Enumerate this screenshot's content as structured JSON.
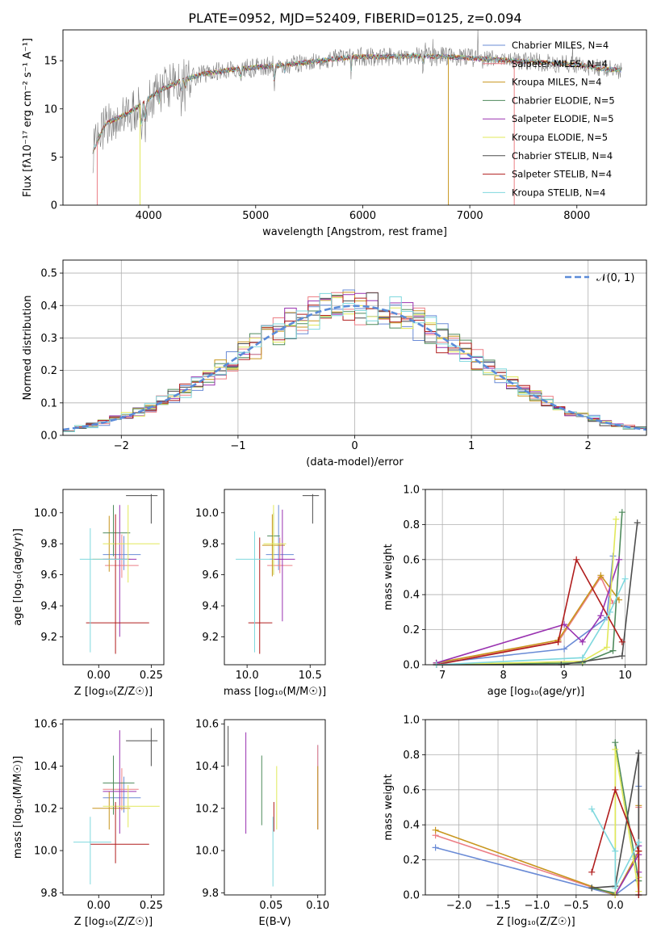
{
  "chart_data": [
    {
      "id": "spectrum",
      "type": "line",
      "title": "PLATE=0952, MJD=52409, FIBERID=0125, z=0.094",
      "xlabel": "wavelength [Angstrom, rest frame]",
      "ylabel": "Flux [fλ10⁻¹⁷ erg cm⁻² s⁻¹ A⁻¹]",
      "xlim": [
        3200,
        8650
      ],
      "ylim": [
        0,
        18.2
      ],
      "xticks": [
        4000,
        5000,
        6000,
        7000,
        8000
      ],
      "yticks": [
        0,
        5,
        10,
        15
      ],
      "grid": false,
      "legend_position": "right",
      "continuum": {
        "x": [
          3480,
          3600,
          3800,
          3950,
          4100,
          4300,
          4500,
          4800,
          5000,
          5300,
          5600,
          5900,
          6200,
          6500,
          6800,
          7100,
          7400,
          7700,
          8000,
          8200,
          8420
        ],
        "y": [
          5.6,
          8.5,
          9.5,
          10.6,
          11.9,
          12.9,
          13.6,
          14.1,
          14.3,
          14.6,
          15.0,
          15.4,
          15.4,
          15.5,
          15.4,
          15.2,
          15.0,
          14.8,
          14.6,
          14.2,
          14.0
        ]
      },
      "series": [
        {
          "name": "Chabrier MILES, N_SSP=4",
          "color": "#6a8bd6"
        },
        {
          "name": "Salpeter MILES, N_SSP=4",
          "color": "#ec7f86"
        },
        {
          "name": "Kroupa MILES, N_SSP=4",
          "color": "#c8961e"
        },
        {
          "name": "Chabrier ELODIE, N_SSP=5",
          "color": "#4e8a5c"
        },
        {
          "name": "Salpeter ELODIE, N_SSP=5",
          "color": "#9932b0"
        },
        {
          "name": "Kroupa ELODIE, N_SSP=5",
          "color": "#e1e85a"
        },
        {
          "name": "Chabrier STELIB, N_SSP=4",
          "color": "#4d4d4d"
        },
        {
          "name": "Salpeter STELIB, N_SSP=4",
          "color": "#b01d1d"
        },
        {
          "name": "Kroupa STELIB, N_SSP=4",
          "color": "#7fd8de"
        }
      ]
    },
    {
      "id": "residuals",
      "type": "histogram",
      "xlabel": "(data-model)/error",
      "ylabel": "Normed distribution",
      "xlim": [
        -2.5,
        2.5
      ],
      "ylim": [
        0,
        0.54
      ],
      "xticks": [
        -2,
        -1,
        0,
        1,
        2
      ],
      "yticks": [
        0.0,
        0.1,
        0.2,
        0.3,
        0.4,
        0.5
      ],
      "grid": true,
      "legend_position": "top-right",
      "reference_label": "𝒩(0, 1)",
      "reference_color": "#5b8bd8",
      "bin_width": 0.1
    },
    {
      "id": "age-vs-Z",
      "type": "errorbar",
      "xlabel": "Z [log₁₀(Z/Z☉)]",
      "ylabel": "age  [log₁₀(age/yr)]",
      "xlim": [
        -0.17,
        0.31
      ],
      "ylim": [
        9.02,
        10.15
      ],
      "xticks": [
        0.0,
        0.25
      ],
      "yticks": [
        9.2,
        9.4,
        9.6,
        9.8,
        10.0
      ],
      "points": [
        {
          "color": "#6a8bd6",
          "x": 0.12,
          "y": 9.73,
          "xerr": [
            0.1,
            0.08
          ],
          "yerr": [
            0.1,
            0.12
          ]
        },
        {
          "color": "#ec7f86",
          "x": 0.11,
          "y": 9.66,
          "xerr": [
            0.08,
            0.08
          ],
          "yerr": [
            0.08,
            0.2
          ]
        },
        {
          "color": "#c8961e",
          "x": 0.05,
          "y": 9.7,
          "xerr": [
            0.08,
            0.1
          ],
          "yerr": [
            0.08,
            0.28
          ]
        },
        {
          "color": "#4e8a5c",
          "x": 0.07,
          "y": 9.87,
          "xerr": [
            0.05,
            0.08
          ],
          "yerr": [
            0.15,
            0.18
          ]
        },
        {
          "color": "#9932b0",
          "x": 0.1,
          "y": 9.7,
          "xerr": [
            0.08,
            0.08
          ],
          "yerr": [
            0.5,
            0.35
          ]
        },
        {
          "color": "#e1e85a",
          "x": 0.14,
          "y": 9.8,
          "xerr": [
            0.12,
            0.15
          ],
          "yerr": [
            0.25,
            0.25
          ]
        },
        {
          "color": "#4d4d4d",
          "x": 0.25,
          "y": 10.11,
          "xerr": [
            0.12,
            0.03
          ],
          "yerr": [
            0.18,
            0.01
          ]
        },
        {
          "color": "#b01d1d",
          "x": 0.08,
          "y": 9.29,
          "xerr": [
            0.14,
            0.16
          ],
          "yerr": [
            0.2,
            0.7
          ]
        },
        {
          "color": "#7fd8de",
          "x": -0.04,
          "y": 9.7,
          "xerr": [
            0.05,
            0.18
          ],
          "yerr": [
            0.6,
            0.2
          ]
        }
      ]
    },
    {
      "id": "age-vs-mass",
      "type": "errorbar",
      "xlabel": "mass [log₁₀(M/M☉)]",
      "ylabel": "",
      "xlim": [
        9.82,
        10.62
      ],
      "ylim": [
        9.02,
        10.15
      ],
      "xticks": [
        10.0,
        10.5
      ],
      "yticks": [
        9.2,
        9.4,
        9.6,
        9.8,
        10.0
      ],
      "points": [
        {
          "color": "#6a8bd6",
          "x": 10.25,
          "y": 9.73,
          "xerr": [
            0.1,
            0.12
          ],
          "yerr": [
            0.1,
            0.32
          ]
        },
        {
          "color": "#ec7f86",
          "x": 10.26,
          "y": 9.66,
          "xerr": [
            0.1,
            0.1
          ],
          "yerr": [
            0.05,
            0.18
          ]
        },
        {
          "color": "#c8961e",
          "x": 10.2,
          "y": 9.79,
          "xerr": [
            0.08,
            0.1
          ],
          "yerr": [
            0.2,
            0.2
          ]
        },
        {
          "color": "#4e8a5c",
          "x": 10.21,
          "y": 9.85,
          "xerr": [
            0.05,
            0.05
          ],
          "yerr": [
            0.25,
            0.15
          ]
        },
        {
          "color": "#9932b0",
          "x": 10.28,
          "y": 9.7,
          "xerr": [
            0.1,
            0.1
          ],
          "yerr": [
            0.4,
            0.32
          ]
        },
        {
          "color": "#e1e85a",
          "x": 10.21,
          "y": 9.8,
          "xerr": [
            0.08,
            0.1
          ],
          "yerr": [
            0.2,
            0.25
          ]
        },
        {
          "color": "#4d4d4d",
          "x": 10.52,
          "y": 10.11,
          "xerr": [
            0.08,
            0.05
          ],
          "yerr": [
            0.18,
            0.01
          ]
        },
        {
          "color": "#b01d1d",
          "x": 10.1,
          "y": 9.29,
          "xerr": [
            0.09,
            0.1
          ],
          "yerr": [
            0.2,
            0.55
          ]
        },
        {
          "color": "#7fd8de",
          "x": 10.06,
          "y": 9.7,
          "xerr": [
            0.15,
            0.14
          ],
          "yerr": [
            0.6,
            0.18
          ]
        }
      ]
    },
    {
      "id": "weight-vs-age",
      "type": "line",
      "xlabel": "age  [log₁₀(age/yr)]",
      "ylabel": "mass weight",
      "xlim": [
        6.72,
        10.35
      ],
      "ylim": [
        0,
        1.0
      ],
      "xticks": [
        7,
        8,
        9,
        10
      ],
      "yticks": [
        0.0,
        0.2,
        0.4,
        0.6,
        0.8,
        1.0
      ],
      "grid": true,
      "series": [
        {
          "color": "#6a8bd6",
          "x": [
            6.9,
            9.0,
            9.7,
            9.8
          ],
          "y": [
            0.01,
            0.09,
            0.27,
            0.62
          ]
        },
        {
          "color": "#ec7f86",
          "x": [
            6.9,
            8.9,
            9.6,
            9.8
          ],
          "y": [
            0.01,
            0.13,
            0.5,
            0.35
          ]
        },
        {
          "color": "#c8961e",
          "x": [
            6.9,
            8.9,
            9.6,
            9.9
          ],
          "y": [
            0.01,
            0.14,
            0.51,
            0.37
          ]
        },
        {
          "color": "#4e8a5c",
          "x": [
            6.9,
            9.3,
            9.8,
            9.95
          ],
          "y": [
            0.0,
            0.01,
            0.08,
            0.87
          ]
        },
        {
          "color": "#9932b0",
          "x": [
            6.9,
            9.0,
            9.3,
            9.6,
            9.9
          ],
          "y": [
            0.01,
            0.23,
            0.13,
            0.28,
            0.6
          ]
        },
        {
          "color": "#e1e85a",
          "x": [
            6.9,
            9.3,
            9.7,
            9.85
          ],
          "y": [
            0.0,
            0.02,
            0.1,
            0.83
          ]
        },
        {
          "color": "#4d4d4d",
          "x": [
            6.9,
            8.95,
            9.95,
            10.2
          ],
          "y": [
            0.0,
            0.0,
            0.05,
            0.81
          ]
        },
        {
          "color": "#b01d1d",
          "x": [
            6.9,
            8.9,
            9.2,
            9.95
          ],
          "y": [
            0.0,
            0.13,
            0.6,
            0.13
          ]
        },
        {
          "color": "#7fd8de",
          "x": [
            6.9,
            9.3,
            9.75,
            10.0
          ],
          "y": [
            0.0,
            0.04,
            0.3,
            0.49
          ]
        }
      ]
    },
    {
      "id": "mass-vs-Z",
      "type": "errorbar",
      "xlabel": "Z [log₁₀(Z/Z☉)]",
      "ylabel": "mass [log₁₀(M/M☉)]",
      "xlim": [
        -0.17,
        0.31
      ],
      "ylim": [
        9.79,
        10.62
      ],
      "xticks": [
        0.0,
        0.25
      ],
      "yticks": [
        9.8,
        10.0,
        10.2,
        10.4,
        10.6
      ],
      "points": [
        {
          "color": "#6a8bd6",
          "x": 0.12,
          "y": 10.25,
          "xerr": [
            0.1,
            0.08
          ],
          "yerr": [
            0.07,
            0.1
          ]
        },
        {
          "color": "#ec7f86",
          "x": 0.11,
          "y": 10.29,
          "xerr": [
            0.09,
            0.08
          ],
          "yerr": [
            0.1,
            0.1
          ]
        },
        {
          "color": "#c8961e",
          "x": 0.05,
          "y": 10.2,
          "xerr": [
            0.08,
            0.1
          ],
          "yerr": [
            0.1,
            0.08
          ]
        },
        {
          "color": "#4e8a5c",
          "x": 0.07,
          "y": 10.32,
          "xerr": [
            0.05,
            0.1
          ],
          "yerr": [
            0.15,
            0.13
          ]
        },
        {
          "color": "#9932b0",
          "x": 0.1,
          "y": 10.28,
          "xerr": [
            0.08,
            0.08
          ],
          "yerr": [
            0.2,
            0.29
          ]
        },
        {
          "color": "#e1e85a",
          "x": 0.14,
          "y": 10.21,
          "xerr": [
            0.12,
            0.15
          ],
          "yerr": [
            0.1,
            0.1
          ]
        },
        {
          "color": "#4d4d4d",
          "x": 0.25,
          "y": 10.52,
          "xerr": [
            0.12,
            0.03
          ],
          "yerr": [
            0.12,
            0.06
          ]
        },
        {
          "color": "#b01d1d",
          "x": 0.08,
          "y": 10.03,
          "xerr": [
            0.12,
            0.16
          ],
          "yerr": [
            0.09,
            0.2
          ]
        },
        {
          "color": "#7fd8de",
          "x": -0.04,
          "y": 10.04,
          "xerr": [
            0.08,
            0.1
          ],
          "yerr": [
            0.2,
            0.12
          ]
        }
      ]
    },
    {
      "id": "mass-vs-ebv",
      "type": "errorbar",
      "xlabel": "E(B-V)",
      "ylabel": "",
      "xlim": [
        0.0,
        0.108
      ],
      "ylim": [
        9.79,
        10.62
      ],
      "xticks": [
        0.05,
        0.1
      ],
      "yticks": [
        9.8,
        10.0,
        10.2,
        10.4,
        10.6
      ],
      "points": [
        {
          "color": "#6a8bd6",
          "x": 0.1,
          "y": 10.3,
          "xerr": [
            0,
            0
          ],
          "yerr": [
            0.2,
            0.2
          ]
        },
        {
          "color": "#ec7f86",
          "x": 0.1,
          "y": 10.3,
          "xerr": [
            0,
            0
          ],
          "yerr": [
            0.2,
            0.2
          ]
        },
        {
          "color": "#c8961e",
          "x": 0.1,
          "y": 10.25,
          "xerr": [
            0,
            0
          ],
          "yerr": [
            0.15,
            0.15
          ]
        },
        {
          "color": "#4e8a5c",
          "x": 0.04,
          "y": 10.28,
          "xerr": [
            0,
            0
          ],
          "yerr": [
            0.16,
            0.17
          ]
        },
        {
          "color": "#9932b0",
          "x": 0.023,
          "y": 10.29,
          "xerr": [
            0,
            0
          ],
          "yerr": [
            0.21,
            0.27
          ]
        },
        {
          "color": "#e1e85a",
          "x": 0.056,
          "y": 10.25,
          "xerr": [
            0,
            0
          ],
          "yerr": [
            0.15,
            0.15
          ]
        },
        {
          "color": "#4d4d4d",
          "x": 0.004,
          "y": 10.5,
          "xerr": [
            0,
            0
          ],
          "yerr": [
            0.1,
            0.09
          ]
        },
        {
          "color": "#b01d1d",
          "x": 0.053,
          "y": 10.15,
          "xerr": [
            0,
            0
          ],
          "yerr": [
            0.06,
            0.08
          ]
        },
        {
          "color": "#7fd8de",
          "x": 0.052,
          "y": 10.0,
          "xerr": [
            0,
            0
          ],
          "yerr": [
            0.17,
            0.16
          ]
        }
      ]
    },
    {
      "id": "weight-vs-Z",
      "type": "line",
      "xlabel": "Z [log₁₀(Z/Z☉)]",
      "ylabel": "mass weight",
      "xlim": [
        -2.43,
        0.4
      ],
      "ylim": [
        0,
        1.0
      ],
      "xticks": [
        -2.0,
        -1.5,
        -1.0,
        -0.5,
        0.0
      ],
      "yticks": [
        0.0,
        0.2,
        0.4,
        0.6,
        0.8,
        1.0
      ],
      "grid": true,
      "series": [
        {
          "color": "#6a8bd6",
          "x": [
            -2.3,
            0.0,
            0.3,
            0.3
          ],
          "y": [
            0.27,
            0.0,
            0.1,
            0.62
          ]
        },
        {
          "color": "#ec7f86",
          "x": [
            -2.3,
            0.0,
            0.3,
            0.3
          ],
          "y": [
            0.34,
            0.0,
            0.25,
            0.5
          ]
        },
        {
          "color": "#c8961e",
          "x": [
            -2.3,
            0.0,
            0.3,
            0.3
          ],
          "y": [
            0.37,
            0.0,
            0.25,
            0.51
          ]
        },
        {
          "color": "#4e8a5c",
          "x": [
            -0.3,
            0.0,
            0.0,
            0.3
          ],
          "y": [
            0.04,
            0.01,
            0.87,
            0.08
          ]
        },
        {
          "color": "#9932b0",
          "x": [
            0.0,
            0.3,
            0.3,
            0.3
          ],
          "y": [
            0.0,
            0.23,
            0.13,
            0.28
          ]
        },
        {
          "color": "#e1e85a",
          "x": [
            0.0,
            0.0,
            0.3,
            0.3
          ],
          "y": [
            0.0,
            0.83,
            0.02,
            0.1
          ]
        },
        {
          "color": "#4d4d4d",
          "x": [
            -0.3,
            0.0,
            0.3,
            0.3
          ],
          "y": [
            0.04,
            0.05,
            0.81,
            0.0
          ]
        },
        {
          "color": "#b01d1d",
          "x": [
            -0.3,
            0.0,
            0.3,
            0.3
          ],
          "y": [
            0.13,
            0.6,
            0.25,
            0.0
          ]
        },
        {
          "color": "#7fd8de",
          "x": [
            -0.3,
            0.0,
            0.0,
            0.3
          ],
          "y": [
            0.49,
            0.25,
            0.04,
            0.3
          ]
        }
      ]
    }
  ]
}
